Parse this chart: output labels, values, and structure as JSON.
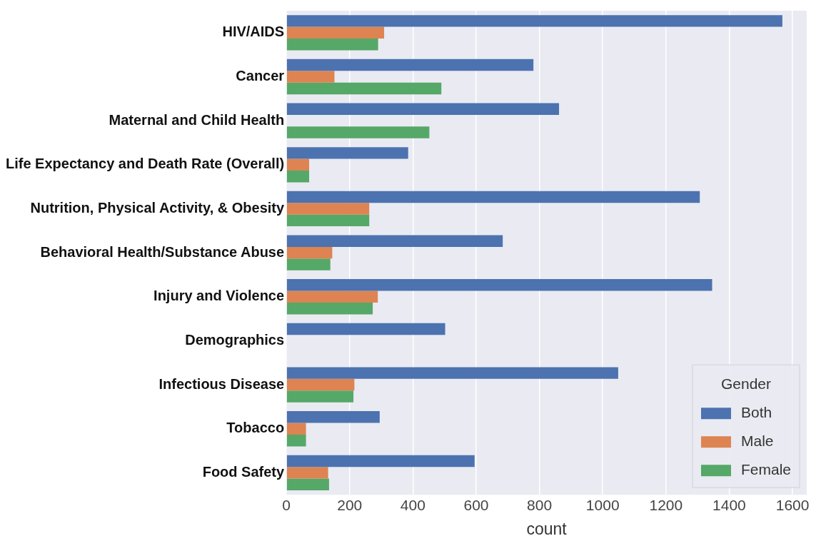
{
  "chart_data": {
    "type": "bar",
    "orientation": "horizontal",
    "xlabel": "count",
    "legend_title": "Gender",
    "legend": "bottom right",
    "grid": "x",
    "categories": [
      "HIV/AIDS",
      "Cancer",
      "Maternal and Child Health",
      "Life Expectancy and Death Rate (Overall)",
      "Nutrition, Physical Activity, & Obesity",
      "Behavioral Health/Substance Abuse",
      "Injury and Violence",
      "Demographics",
      "Infectious Disease",
      "Tobacco",
      "Food Safety"
    ],
    "series": [
      {
        "name": "Both",
        "color": "#4c72b0",
        "values": [
          1568,
          781,
          862,
          385,
          1307,
          684,
          1346,
          502,
          1049,
          295,
          595
        ]
      },
      {
        "name": "Male",
        "color": "#dd8452",
        "values": [
          309,
          152,
          null,
          72,
          262,
          145,
          289,
          null,
          215,
          62,
          132
        ]
      },
      {
        "name": "Female",
        "color": "#55a868",
        "values": [
          290,
          490,
          452,
          72,
          262,
          139,
          273,
          null,
          212,
          62,
          135
        ]
      }
    ],
    "xlim": [
      0,
      1645
    ],
    "xticks": [
      0,
      200,
      400,
      600,
      800,
      1000,
      1200,
      1400,
      1600
    ]
  }
}
